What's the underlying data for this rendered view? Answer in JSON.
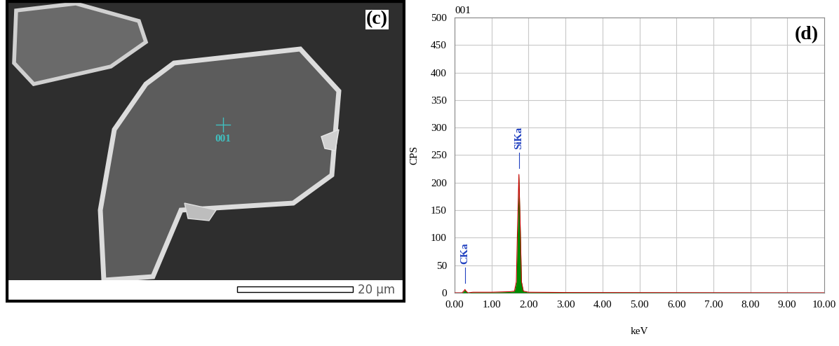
{
  "image_panel": {
    "panel_label": "(c)",
    "point_label": "001",
    "scale_bar": "20 µm"
  },
  "chart_data": {
    "type": "area",
    "title": "001",
    "panel_label": "(d)",
    "x_label": "keV",
    "y_label": "CPS",
    "x": [
      0.0,
      0.2,
      0.25,
      0.28,
      0.31,
      0.36,
      0.5,
      1.0,
      1.5,
      1.62,
      1.67,
      1.7,
      1.74,
      1.78,
      1.81,
      1.86,
      2.0,
      3.0,
      10.0
    ],
    "values": [
      0,
      0,
      3,
      6,
      3,
      0,
      1,
      1,
      2,
      3,
      20,
      110,
      215,
      110,
      20,
      3,
      1,
      0.5,
      0
    ],
    "color": "#008a00",
    "peaks": [
      {
        "label": "CKa",
        "x": 0.28,
        "value": 6
      },
      {
        "label": "SiKa",
        "x": 1.74,
        "value": 215
      }
    ],
    "xlim": [
      0,
      10
    ],
    "ylim": [
      0,
      500
    ],
    "xticks": [
      {
        "value": 0,
        "label": "0.00"
      },
      {
        "value": 1,
        "label": "1.00"
      },
      {
        "value": 2,
        "label": "2.00"
      },
      {
        "value": 3,
        "label": "3.00"
      },
      {
        "value": 4,
        "label": "4.00"
      },
      {
        "value": 5,
        "label": "5.00"
      },
      {
        "value": 6,
        "label": "6.00"
      },
      {
        "value": 7,
        "label": "7.00"
      },
      {
        "value": 8,
        "label": "8.00"
      },
      {
        "value": 9,
        "label": "9.00"
      },
      {
        "value": 10,
        "label": "10.00"
      }
    ],
    "yticks": [
      0,
      50,
      100,
      150,
      200,
      250,
      300,
      350,
      400,
      450,
      500
    ],
    "grid": true
  }
}
